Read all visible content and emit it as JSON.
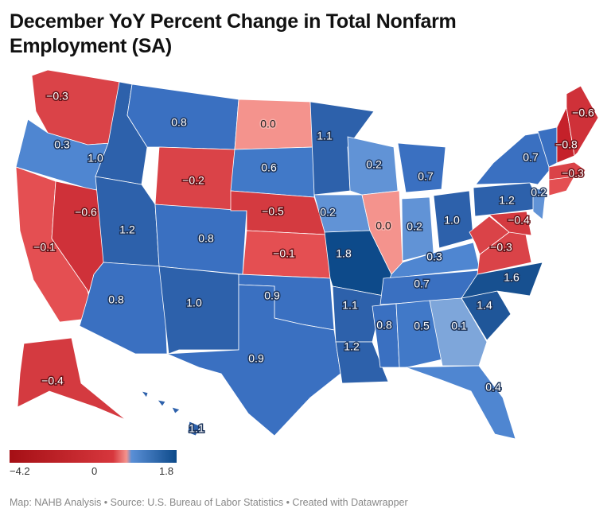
{
  "title": "December YoY Percent Change in Total Nonfarm Employment (SA)",
  "footer": "Map: NAHB Analysis • Source: U.S. Bureau of Labor Statistics • Created with Datawrapper",
  "legend": {
    "min_label": "−4.2",
    "mid_label": "0",
    "max_label": "1.8",
    "min": -4.2,
    "mid": 0,
    "max": 1.8,
    "colors": {
      "negative_strong": "#a50f15",
      "negative": "#d7373d",
      "zero": "#f4938d",
      "positive": "#5a8fd6",
      "positive_strong": "#0d4a8a"
    }
  },
  "states": [
    {
      "id": "WA",
      "label": "−0.3",
      "value": -0.3
    },
    {
      "id": "OR",
      "label": "0.3",
      "value": 0.3
    },
    {
      "id": "CA",
      "label": "−0.1",
      "value": -0.1
    },
    {
      "id": "NV",
      "label": "−0.6",
      "value": -0.6
    },
    {
      "id": "ID",
      "label": "1.0",
      "value": 1.0
    },
    {
      "id": "MT",
      "label": "0.8",
      "value": 0.8
    },
    {
      "id": "WY",
      "label": "−0.2",
      "value": -0.2
    },
    {
      "id": "UT",
      "label": "1.2",
      "value": 1.2
    },
    {
      "id": "AZ",
      "label": "0.8",
      "value": 0.8
    },
    {
      "id": "CO",
      "label": "0.8",
      "value": 0.8
    },
    {
      "id": "NM",
      "label": "1.0",
      "value": 1.0
    },
    {
      "id": "ND",
      "label": "0.0",
      "value": 0.0
    },
    {
      "id": "SD",
      "label": "0.6",
      "value": 0.6
    },
    {
      "id": "NE",
      "label": "−0.5",
      "value": -0.5
    },
    {
      "id": "KS",
      "label": "−0.1",
      "value": -0.1
    },
    {
      "id": "OK",
      "label": "0.9",
      "value": 0.9
    },
    {
      "id": "TX",
      "label": "0.9",
      "value": 0.9
    },
    {
      "id": "MN",
      "label": "1.1",
      "value": 1.1
    },
    {
      "id": "IA",
      "label": "0.2",
      "value": 0.2
    },
    {
      "id": "MO",
      "label": "1.8",
      "value": 1.8
    },
    {
      "id": "AR",
      "label": "1.1",
      "value": 1.1
    },
    {
      "id": "LA",
      "label": "1.2",
      "value": 1.2
    },
    {
      "id": "WI",
      "label": "0.2",
      "value": 0.2
    },
    {
      "id": "IL",
      "label": "0.0",
      "value": 0.0
    },
    {
      "id": "MI",
      "label": "0.7",
      "value": 0.7
    },
    {
      "id": "IN",
      "label": "0.2",
      "value": 0.2
    },
    {
      "id": "OH",
      "label": "1.0",
      "value": 1.0
    },
    {
      "id": "KY",
      "label": "0.3",
      "value": 0.3
    },
    {
      "id": "TN",
      "label": "0.7",
      "value": 0.7
    },
    {
      "id": "MS",
      "label": "0.8",
      "value": 0.8
    },
    {
      "id": "AL",
      "label": "0.5",
      "value": 0.5
    },
    {
      "id": "GA",
      "label": "0.1",
      "value": 0.1
    },
    {
      "id": "FL",
      "label": "0.4",
      "value": 0.4
    },
    {
      "id": "SC",
      "label": "1.4",
      "value": 1.4
    },
    {
      "id": "NC",
      "label": "1.6",
      "value": 1.6
    },
    {
      "id": "VA",
      "label": "−0.3",
      "value": -0.3
    },
    {
      "id": "WV",
      "label": "",
      "value": -0.3
    },
    {
      "id": "MD",
      "label": "−0.4",
      "value": -0.4
    },
    {
      "id": "PA",
      "label": "1.2",
      "value": 1.2
    },
    {
      "id": "NY",
      "label": "0.7",
      "value": 0.7
    },
    {
      "id": "NJ",
      "label": "0.2",
      "value": 0.2
    },
    {
      "id": "VT",
      "label": "",
      "value": 0.7
    },
    {
      "id": "NH",
      "label": "−0.8",
      "value": -0.8
    },
    {
      "id": "ME",
      "label": "−0.6",
      "value": -0.6
    },
    {
      "id": "MA",
      "label": "−0.3",
      "value": -0.3
    },
    {
      "id": "CT",
      "label": "",
      "value": -0.1
    },
    {
      "id": "AK",
      "label": "−0.4",
      "value": -0.4
    },
    {
      "id": "HI",
      "label": "1.1",
      "value": 1.1
    }
  ]
}
